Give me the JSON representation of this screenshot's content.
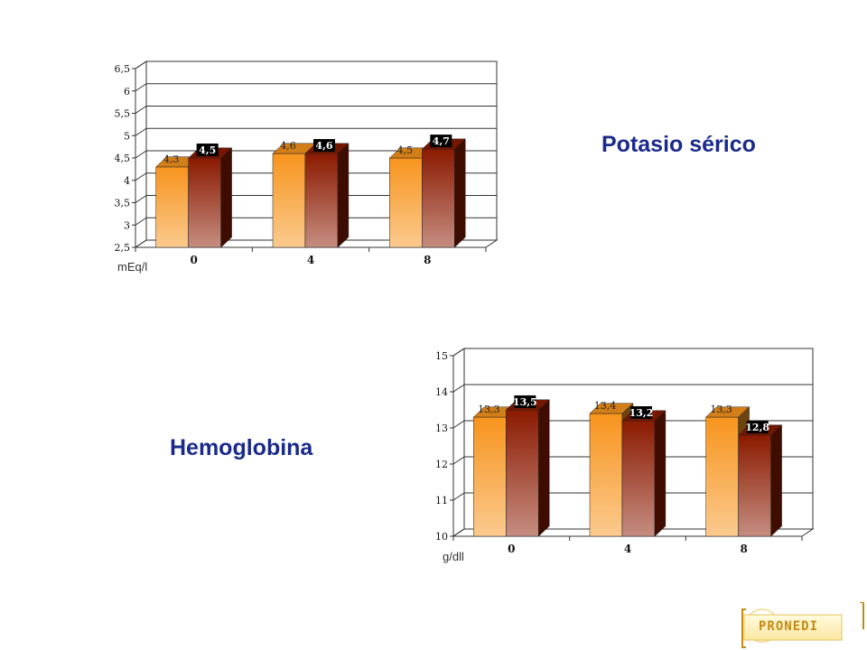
{
  "chart_data": [
    {
      "type": "bar",
      "title": "Potasio sérico",
      "ylabel": "mEq/l",
      "xlabel": "",
      "categories": [
        "0",
        "4",
        "8"
      ],
      "ylim": [
        2.5,
        6.5
      ],
      "yticks": [
        "2,5",
        "3",
        "3,5",
        "4",
        "4,5",
        "5",
        "5,5",
        "6",
        "6,5"
      ],
      "grid": true,
      "series": [
        {
          "values": [
            4.3,
            4.6,
            4.5
          ],
          "labels": [
            "4,3",
            "4,6",
            "4,5"
          ],
          "color": "#f7941d"
        },
        {
          "values": [
            4.5,
            4.6,
            4.7
          ],
          "labels": [
            "4,5",
            "4,6",
            "4,7"
          ],
          "color": "#8b1a00"
        }
      ]
    },
    {
      "type": "bar",
      "title": "Hemoglobina",
      "ylabel": "g/dll",
      "xlabel": "",
      "categories": [
        "0",
        "4",
        "8"
      ],
      "ylim": [
        10,
        15
      ],
      "yticks": [
        "10",
        "11",
        "12",
        "13",
        "14",
        "15"
      ],
      "grid": true,
      "series": [
        {
          "values": [
            13.3,
            13.4,
            13.3
          ],
          "labels": [
            "13,3",
            "13,4",
            "13,3"
          ],
          "color": "#f7941d"
        },
        {
          "values": [
            13.5,
            13.2,
            12.8
          ],
          "labels": [
            "13,5",
            "13,2",
            "12,8"
          ],
          "color": "#8b1a00"
        }
      ]
    }
  ],
  "logo": {
    "text": "PRONEDI",
    "color": "#c48a10"
  }
}
